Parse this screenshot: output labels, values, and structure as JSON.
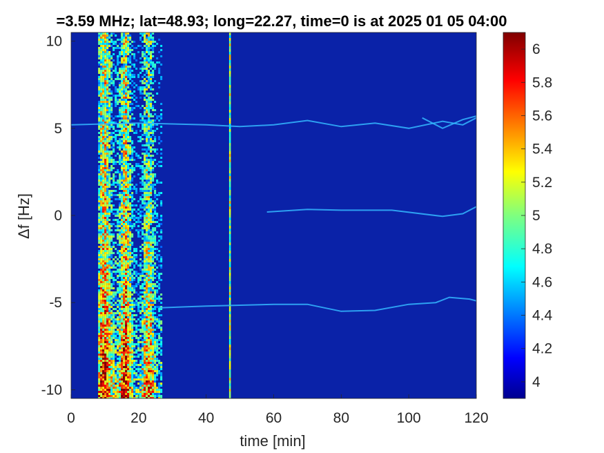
{
  "chart_data": {
    "type": "heatmap",
    "title": "=3.59 MHz;  lat=48.93; long=22.27, time=0 is at 2025 01 05 04:00",
    "xlabel": "time [min]",
    "ylabel": "Δf [Hz]",
    "xlim": [
      0,
      120
    ],
    "ylim": [
      -10.5,
      10.5
    ],
    "xticks": [
      0,
      20,
      40,
      60,
      80,
      100,
      120
    ],
    "xtick_labels": [
      "0",
      "20",
      "40",
      "60",
      "80",
      "100",
      "120"
    ],
    "yticks": [
      10,
      5,
      0,
      -5,
      -10
    ],
    "ytick_labels": [
      "10",
      "5",
      "0",
      "-5",
      "-10"
    ],
    "colormap": "jet",
    "clim": [
      3.9,
      6.1
    ],
    "colorbar_ticks": [
      6,
      5.8,
      5.6,
      5.4,
      5.2,
      5,
      4.8,
      4.6,
      4.4,
      4.2,
      4
    ],
    "colorbar_tick_labels": [
      "6",
      "5.8",
      "5.6",
      "5.4",
      "5.2",
      "5",
      "4.8",
      "4.6",
      "4.4",
      "4.2",
      "4"
    ],
    "grid": false,
    "features": {
      "broadband_activity_minutes": [
        8,
        26.5
      ],
      "vertical_line_minute": 47,
      "traces": [
        {
          "name": "upper",
          "points": [
            [
              0,
              5.2
            ],
            [
              10,
              5.25
            ],
            [
              20,
              5.3
            ],
            [
              30,
              5.25
            ],
            [
              40,
              5.2
            ],
            [
              50,
              5.1
            ],
            [
              60,
              5.2
            ],
            [
              70,
              5.45
            ],
            [
              80,
              5.1
            ],
            [
              90,
              5.3
            ],
            [
              100,
              5.0
            ],
            [
              110,
              5.4
            ],
            [
              116,
              5.2
            ],
            [
              120,
              5.6
            ]
          ]
        },
        {
          "name": "middle",
          "points": [
            [
              58,
              0.2
            ],
            [
              70,
              0.35
            ],
            [
              80,
              0.3
            ],
            [
              95,
              0.3
            ],
            [
              110,
              -0.05
            ],
            [
              116,
              0.1
            ],
            [
              120,
              0.5
            ]
          ]
        },
        {
          "name": "lower",
          "points": [
            [
              26,
              -5.3
            ],
            [
              40,
              -5.2
            ],
            [
              60,
              -5.1
            ],
            [
              70,
              -5.1
            ],
            [
              80,
              -5.5
            ],
            [
              90,
              -5.45
            ],
            [
              100,
              -5.1
            ],
            [
              108,
              -5.0
            ],
            [
              112,
              -4.7
            ],
            [
              118,
              -4.8
            ],
            [
              120,
              -4.9
            ]
          ]
        },
        {
          "name": "upper-branch",
          "points": [
            [
              104,
              5.6
            ],
            [
              110,
              5.0
            ],
            [
              116,
              5.5
            ],
            [
              120,
              5.7
            ]
          ]
        }
      ]
    }
  }
}
